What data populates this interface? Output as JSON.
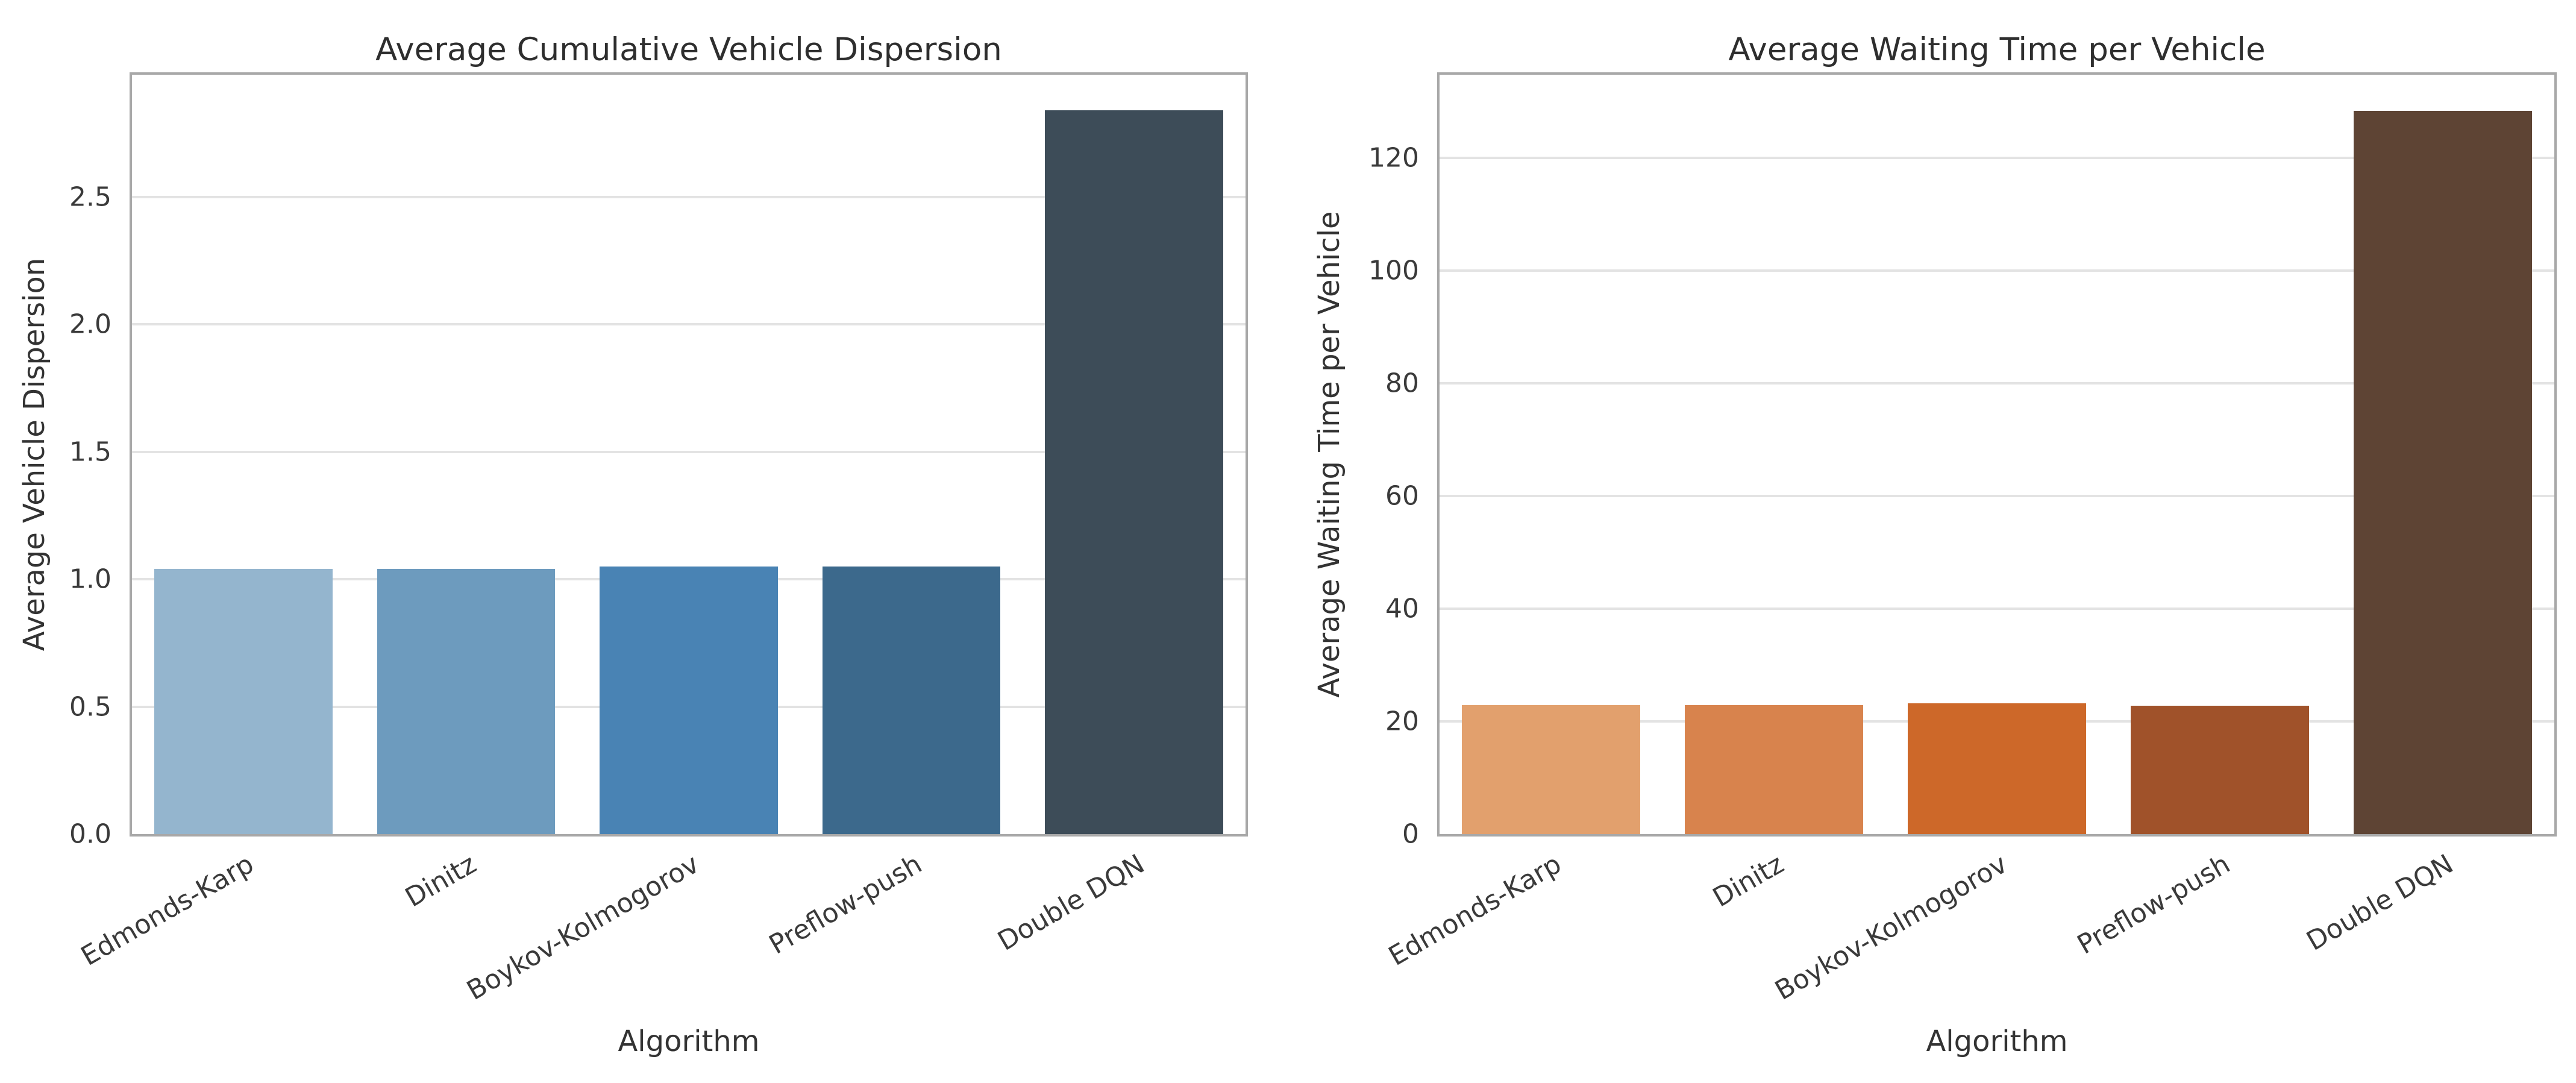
{
  "figure": {
    "background_color": "#ffffff",
    "text_color": "#333333",
    "grid_color": "#e3e3e3",
    "frame_color": "#a8a8a8"
  },
  "chart_data": [
    {
      "type": "bar",
      "title": "Average Cumulative Vehicle Dispersion",
      "xlabel": "Algorithm",
      "ylabel": "Average Vehicle Dispersion",
      "categories": [
        "Edmonds-Karp",
        "Dinitz",
        "Boykov-Kolmogorov",
        "Preflow-push",
        "Double DQN"
      ],
      "values": [
        1.04,
        1.04,
        1.05,
        1.05,
        2.84
      ],
      "bar_colors": [
        "#94b5ce",
        "#6d9bbe",
        "#4983b4",
        "#3c698c",
        "#3d4c58"
      ],
      "ytick_values": [
        0,
        0.5,
        1.0,
        1.5,
        2.0,
        2.5
      ],
      "ytick_labels": [
        "0.0",
        "0.5",
        "1.0",
        "1.5",
        "2.0",
        "2.5"
      ],
      "ylim": [
        0,
        2.98
      ],
      "grid": true,
      "legend": false
    },
    {
      "type": "bar",
      "title": "Average Waiting Time per Vehicle",
      "xlabel": "Algorithm",
      "ylabel": "Average Waiting Time per Vehicle",
      "categories": [
        "Edmonds-Karp",
        "Dinitz",
        "Boykov-Kolmogorov",
        "Preflow-push",
        "Double DQN"
      ],
      "values": [
        22.9,
        22.9,
        23.2,
        22.8,
        128.3
      ],
      "bar_colors": [
        "#e2a06d",
        "#d8834d",
        "#cd6829",
        "#a0522a",
        "#5e4434"
      ],
      "ytick_values": [
        0,
        20,
        40,
        60,
        80,
        100,
        120
      ],
      "ytick_labels": [
        "0",
        "20",
        "40",
        "60",
        "80",
        "100",
        "120"
      ],
      "ylim": [
        0,
        134.7
      ],
      "grid": true,
      "legend": false
    }
  ]
}
